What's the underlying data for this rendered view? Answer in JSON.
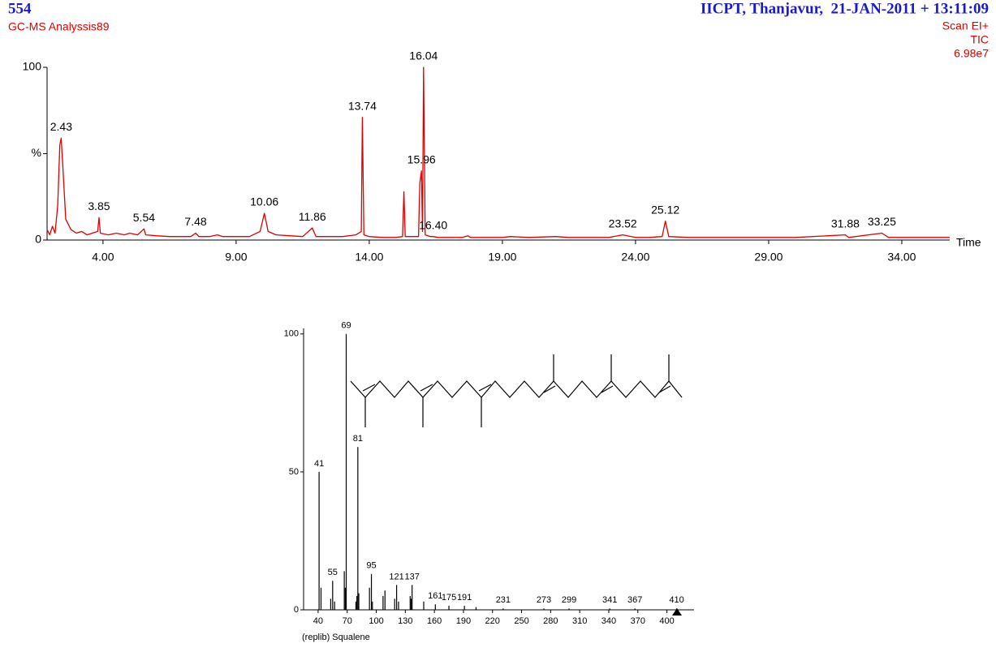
{
  "chart_data": [
    {
      "type": "line",
      "sample_id": "554",
      "title": "IICPT, Thanjavur,  21-JAN-2011 + 13:11:09",
      "subtitle": "GC-MS Analyssis89",
      "scan_info": [
        "Scan EI+",
        "TIC",
        "6.98e7"
      ],
      "xlabel": "Time",
      "xlim": [
        1.9,
        35.8
      ],
      "ylim": [
        0,
        100
      ],
      "xticks": [
        {
          "value": 4,
          "label": "4.00"
        },
        {
          "value": 9,
          "label": "9.00"
        },
        {
          "value": 14,
          "label": "14.00"
        },
        {
          "value": 19,
          "label": "19.00"
        },
        {
          "value": 24,
          "label": "24.00"
        },
        {
          "value": 29,
          "label": "29.00"
        },
        {
          "value": 34,
          "label": "34.00"
        }
      ],
      "yticks": [
        0,
        {
          "value": 50,
          "label": "%"
        },
        100
      ],
      "series": [
        {
          "color": "#e00000",
          "x": [
            1.9,
            2.0,
            2.1,
            2.2,
            2.3,
            2.38,
            2.43,
            2.5,
            2.6,
            2.8,
            3.0,
            3.2,
            3.4,
            3.6,
            3.8,
            3.85,
            3.9,
            4.2,
            4.5,
            4.8,
            5.0,
            5.3,
            5.54,
            5.6,
            6.0,
            6.5,
            7.0,
            7.3,
            7.48,
            7.6,
            8.0,
            8.3,
            8.5,
            9.0,
            9.5,
            9.9,
            10.06,
            10.2,
            10.5,
            11.0,
            11.5,
            11.86,
            12.0,
            12.5,
            13.0,
            13.5,
            13.7,
            13.74,
            13.8,
            14.0,
            14.5,
            15.0,
            15.25,
            15.3,
            15.35,
            15.6,
            15.85,
            15.9,
            15.96,
            16.0,
            16.04,
            16.1,
            16.3,
            16.4,
            16.6,
            17.5,
            17.7,
            17.8,
            19.0,
            19.3,
            20.0,
            21.0,
            21.5,
            23.0,
            23.52,
            24.0,
            24.5,
            25.0,
            25.12,
            25.25,
            26.0,
            28.0,
            30.0,
            31.88,
            32.0,
            33.25,
            33.5,
            35.0,
            35.8
          ],
          "values": [
            6,
            3,
            8,
            4,
            20,
            55,
            59,
            40,
            12,
            6,
            4,
            5,
            3,
            4,
            5,
            13,
            4,
            3,
            4,
            3,
            4,
            3,
            6.5,
            3,
            2.5,
            2,
            2,
            2,
            4,
            2,
            2,
            3,
            2,
            2,
            2,
            5,
            15.5,
            5,
            3,
            2.5,
            2,
            7,
            2,
            2,
            2,
            3,
            5,
            71,
            3,
            2,
            1.5,
            1.5,
            2,
            28,
            2,
            2,
            2,
            33,
            40,
            5,
            100,
            3,
            2,
            2,
            1.5,
            1.5,
            2.5,
            1.5,
            1.5,
            2,
            1.5,
            2,
            1.5,
            1.5,
            3,
            1.5,
            1.5,
            2,
            11,
            2,
            1.5,
            1.5,
            1.5,
            3,
            1.5,
            4,
            1.5,
            1.5,
            1.5
          ]
        }
      ],
      "peak_labels": [
        {
          "value": 2.43,
          "label": "2.43"
        },
        {
          "value": 3.85,
          "label": "3.85"
        },
        {
          "value": 5.54,
          "label": "5.54"
        },
        {
          "value": 7.48,
          "label": "7.48"
        },
        {
          "value": 10.06,
          "label": "10.06"
        },
        {
          "value": 11.86,
          "label": "11.86"
        },
        {
          "value": 13.74,
          "label": "13.74"
        },
        {
          "value": 15.96,
          "label": "15.96"
        },
        {
          "value": 16.04,
          "label": "16.04"
        },
        {
          "value": 16.4,
          "label": "16.40"
        },
        {
          "value": 23.52,
          "label": "23.52"
        },
        {
          "value": 25.12,
          "label": "25.12"
        },
        {
          "value": 31.88,
          "label": "31.88"
        },
        {
          "value": 33.25,
          "label": "33.25"
        }
      ]
    },
    {
      "type": "bar",
      "caption": "(replib) Squalene",
      "xlim": [
        25,
        428
      ],
      "ylim": [
        0,
        102
      ],
      "xticks": [
        40,
        70,
        100,
        130,
        160,
        190,
        220,
        250,
        280,
        310,
        340,
        370,
        400
      ],
      "yticks": [
        0,
        50,
        100
      ],
      "series": [
        {
          "color": "#000000",
          "x": [
            41,
            43,
            53,
            55,
            57,
            67,
            68,
            69,
            79,
            80,
            81,
            82,
            93,
            95,
            96,
            107,
            109,
            119,
            121,
            123,
            135,
            136,
            137,
            149,
            161,
            175,
            191,
            203,
            231,
            273,
            299,
            341,
            367,
            410
          ],
          "values": [
            50,
            8,
            4,
            10.5,
            3,
            14,
            8,
            100,
            3,
            5,
            59,
            6,
            8,
            13,
            3,
            5,
            7,
            4,
            9,
            3,
            5,
            4,
            9,
            3,
            2,
            1.5,
            1.5,
            1,
            0.5,
            0.5,
            0.5,
            0.5,
            0.5,
            0.5
          ]
        }
      ],
      "peak_labels": [
        41,
        55,
        69,
        81,
        95,
        121,
        137,
        161,
        175,
        191,
        231,
        273,
        299,
        341,
        367,
        410
      ]
    }
  ]
}
